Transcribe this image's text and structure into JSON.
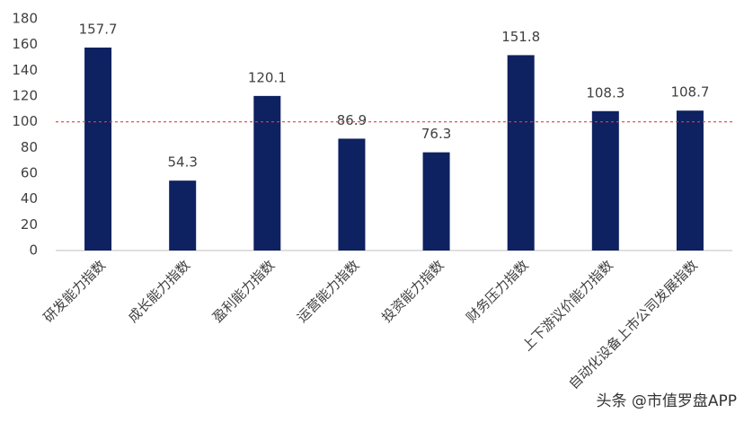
{
  "chart_data": {
    "type": "bar",
    "categories": [
      "研发能力指数",
      "成长能力指数",
      "盈利能力指数",
      "运营能力指数",
      "投资能力指数",
      "财务压力指数",
      "上下游议价能力指数",
      "自动化设备上市公司发展指数"
    ],
    "values": [
      157.7,
      54.3,
      120.1,
      86.9,
      76.3,
      151.8,
      108.3,
      108.7
    ],
    "color": "#0e2160",
    "ylim": [
      0,
      180
    ],
    "yticks": [
      0,
      20,
      40,
      60,
      80,
      100,
      120,
      140,
      160,
      180
    ],
    "grid": false,
    "reference_line": 100,
    "reference_color": "#e0403a",
    "watermark": "头条 @市值罗盘APP"
  }
}
